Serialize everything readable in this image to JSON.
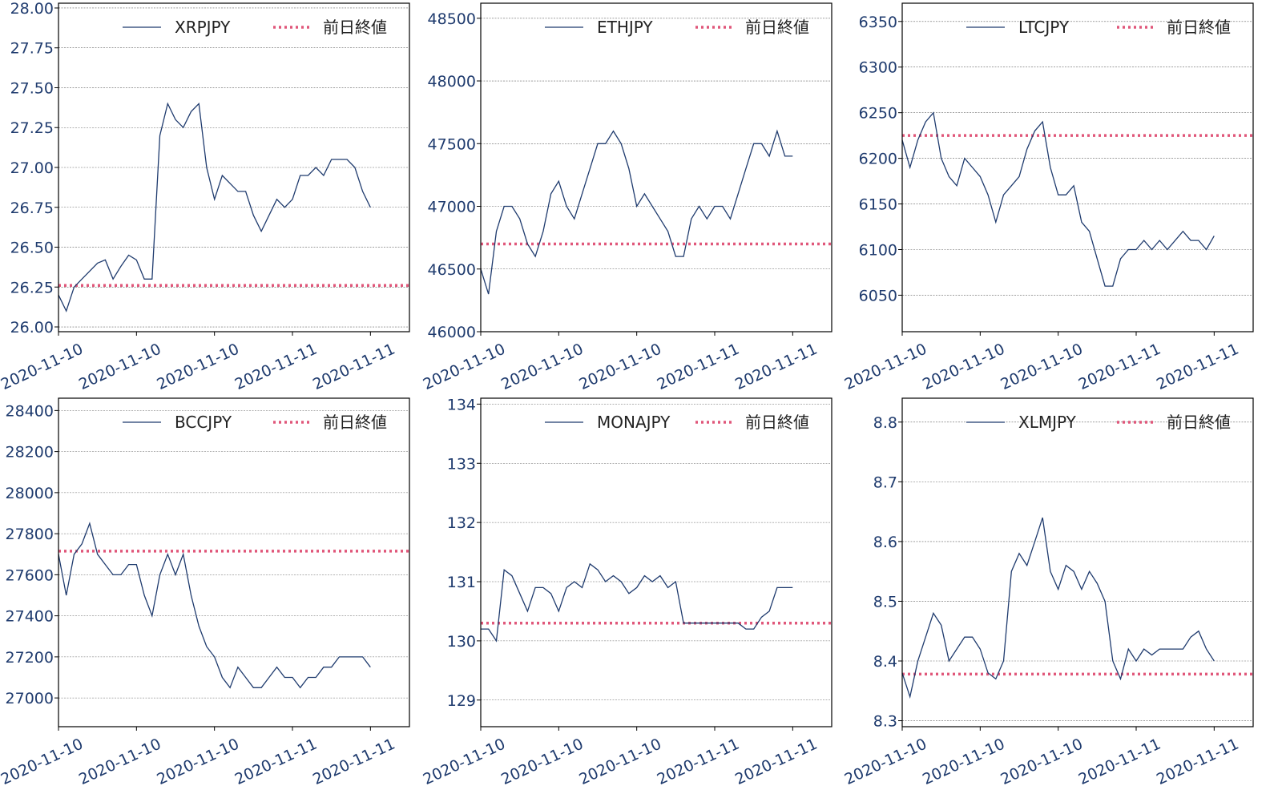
{
  "chart_data": [
    {
      "type": "line",
      "categories": [
        "2020-11-10",
        null,
        null,
        null,
        null,
        null,
        null,
        null,
        null,
        null,
        "2020-11-10",
        null,
        null,
        null,
        null,
        null,
        null,
        null,
        null,
        null,
        "2020-11-10",
        null,
        null,
        null,
        null,
        null,
        null,
        null,
        null,
        null,
        "2020-11-11",
        null,
        null,
        null,
        null,
        null,
        null,
        null,
        null,
        null,
        "2020-11-11"
      ],
      "series": [
        {
          "name": "XRPJPY",
          "color": "#1f3b6e",
          "values": [
            26.2,
            26.1,
            26.25,
            26.3,
            26.35,
            26.4,
            26.42,
            26.3,
            26.38,
            26.45,
            26.42,
            26.3,
            26.3,
            27.2,
            27.4,
            27.3,
            27.25,
            27.35,
            27.4,
            27.0,
            26.8,
            26.95,
            26.9,
            26.85,
            26.85,
            26.7,
            26.6,
            26.7,
            26.8,
            26.75,
            26.8,
            26.95,
            26.95,
            27.0,
            26.95,
            27.05,
            27.05,
            27.05,
            27.0,
            26.85,
            26.75
          ]
        }
      ],
      "reference": {
        "name": "前日終値",
        "value": 26.26,
        "color": "#e0577a"
      },
      "ylim": [
        25.97,
        28.03
      ],
      "yticks": [
        {
          "value": 26,
          "label": "26.00"
        },
        {
          "value": 26.25,
          "label": "26.25"
        },
        {
          "value": 26.5,
          "label": "26.50"
        },
        {
          "value": 26.75,
          "label": "26.75"
        },
        {
          "value": 27,
          "label": "27.00"
        },
        {
          "value": 27.25,
          "label": "27.25"
        },
        {
          "value": 27.5,
          "label": "27.50"
        },
        {
          "value": 27.75,
          "label": "27.75"
        },
        {
          "value": 28,
          "label": "28.00"
        }
      ],
      "grid": true
    },
    {
      "type": "line",
      "categories": [
        "2020-11-10",
        null,
        null,
        null,
        null,
        null,
        null,
        null,
        null,
        null,
        "2020-11-10",
        null,
        null,
        null,
        null,
        null,
        null,
        null,
        null,
        null,
        "2020-11-10",
        null,
        null,
        null,
        null,
        null,
        null,
        null,
        null,
        null,
        "2020-11-11",
        null,
        null,
        null,
        null,
        null,
        null,
        null,
        null,
        null,
        "2020-11-11"
      ],
      "series": [
        {
          "name": "ETHJPY",
          "color": "#1f3b6e",
          "values": [
            46500,
            46300,
            46800,
            47000,
            47000,
            46900,
            46700,
            46600,
            46800,
            47100,
            47200,
            47000,
            46900,
            47100,
            47300,
            47500,
            47500,
            47600,
            47500,
            47300,
            47000,
            47100,
            47000,
            46900,
            46800,
            46600,
            46600,
            46900,
            47000,
            46900,
            47000,
            47000,
            46900,
            47100,
            47300,
            47500,
            47500,
            47400,
            47600,
            47400,
            47400
          ]
        }
      ],
      "reference": {
        "name": "前日終値",
        "value": 46700,
        "color": "#e0577a"
      },
      "ylim": [
        46000,
        48620
      ],
      "yticks": [
        46000,
        46500,
        47000,
        47500,
        48000,
        48500
      ],
      "grid": true
    },
    {
      "type": "line",
      "categories": [
        "2020-11-10",
        null,
        null,
        null,
        null,
        null,
        null,
        null,
        null,
        null,
        "2020-11-10",
        null,
        null,
        null,
        null,
        null,
        null,
        null,
        null,
        null,
        "2020-11-10",
        null,
        null,
        null,
        null,
        null,
        null,
        null,
        null,
        null,
        "2020-11-11",
        null,
        null,
        null,
        null,
        null,
        null,
        null,
        null,
        null,
        "2020-11-11"
      ],
      "series": [
        {
          "name": "LTCJPY",
          "color": "#1f3b6e",
          "values": [
            6220,
            6190,
            6220,
            6240,
            6250,
            6200,
            6180,
            6170,
            6200,
            6190,
            6180,
            6160,
            6130,
            6160,
            6170,
            6180,
            6210,
            6230,
            6240,
            6190,
            6160,
            6160,
            6170,
            6130,
            6120,
            6090,
            6060,
            6060,
            6090,
            6100,
            6100,
            6110,
            6100,
            6110,
            6100,
            6110,
            6120,
            6110,
            6110,
            6100,
            6115
          ]
        }
      ],
      "reference": {
        "name": "前日終値",
        "value": 6225,
        "color": "#e0577a"
      },
      "ylim": [
        6010,
        6370
      ],
      "yticks": [
        6050,
        6100,
        6150,
        6200,
        6250,
        6300,
        6350
      ],
      "grid": true
    },
    {
      "type": "line",
      "categories": [
        "2020-11-10",
        null,
        null,
        null,
        null,
        null,
        null,
        null,
        null,
        null,
        "2020-11-10",
        null,
        null,
        null,
        null,
        null,
        null,
        null,
        null,
        null,
        "2020-11-10",
        null,
        null,
        null,
        null,
        null,
        null,
        null,
        null,
        null,
        "2020-11-11",
        null,
        null,
        null,
        null,
        null,
        null,
        null,
        null,
        null,
        "2020-11-11"
      ],
      "series": [
        {
          "name": "BCCJPY",
          "color": "#1f3b6e",
          "values": [
            27700,
            27500,
            27700,
            27750,
            27850,
            27700,
            27650,
            27600,
            27600,
            27650,
            27650,
            27500,
            27400,
            27600,
            27700,
            27600,
            27700,
            27500,
            27350,
            27250,
            27200,
            27100,
            27050,
            27150,
            27100,
            27050,
            27050,
            27100,
            27150,
            27100,
            27100,
            27050,
            27100,
            27100,
            27150,
            27150,
            27200,
            27200,
            27200,
            27200,
            27150
          ]
        }
      ],
      "reference": {
        "name": "前日終値",
        "value": 27715,
        "color": "#e0577a"
      },
      "ylim": [
        26860,
        28460
      ],
      "yticks": [
        27000,
        27200,
        27400,
        27600,
        27800,
        28000,
        28200,
        28400
      ],
      "grid": true
    },
    {
      "type": "line",
      "categories": [
        "2020-11-10",
        null,
        null,
        null,
        null,
        null,
        null,
        null,
        null,
        null,
        "2020-11-10",
        null,
        null,
        null,
        null,
        null,
        null,
        null,
        null,
        null,
        "2020-11-10",
        null,
        null,
        null,
        null,
        null,
        null,
        null,
        null,
        null,
        "2020-11-11",
        null,
        null,
        null,
        null,
        null,
        null,
        null,
        null,
        null,
        "2020-11-11"
      ],
      "series": [
        {
          "name": "MONAJPY",
          "color": "#1f3b6e",
          "values": [
            130.2,
            130.2,
            130.0,
            131.2,
            131.1,
            130.8,
            130.5,
            130.9,
            130.9,
            130.8,
            130.5,
            130.9,
            131.0,
            130.9,
            131.3,
            131.2,
            131.0,
            131.1,
            131.0,
            130.8,
            130.9,
            131.1,
            131.0,
            131.1,
            130.9,
            131.0,
            130.3,
            130.3,
            130.3,
            130.3,
            130.3,
            130.3,
            130.3,
            130.3,
            130.2,
            130.2,
            130.4,
            130.5,
            130.9,
            130.9,
            130.9
          ]
        }
      ],
      "reference": {
        "name": "前日終値",
        "value": 130.3,
        "color": "#e0577a"
      },
      "ylim": [
        128.55,
        134.1
      ],
      "yticks": [
        129,
        130,
        131,
        132,
        133,
        134
      ],
      "grid": true
    },
    {
      "type": "line",
      "categories": [
        "2020-11-10",
        null,
        null,
        null,
        null,
        null,
        null,
        null,
        null,
        null,
        "2020-11-10",
        null,
        null,
        null,
        null,
        null,
        null,
        null,
        null,
        null,
        "2020-11-10",
        null,
        null,
        null,
        null,
        null,
        null,
        null,
        null,
        null,
        "2020-11-11",
        null,
        null,
        null,
        null,
        null,
        null,
        null,
        null,
        null,
        "2020-11-11"
      ],
      "series": [
        {
          "name": "XLMJPY",
          "color": "#1f3b6e",
          "values": [
            8.38,
            8.34,
            8.4,
            8.44,
            8.48,
            8.46,
            8.4,
            8.42,
            8.44,
            8.44,
            8.42,
            8.38,
            8.37,
            8.4,
            8.55,
            8.58,
            8.56,
            8.6,
            8.64,
            8.55,
            8.52,
            8.56,
            8.55,
            8.52,
            8.55,
            8.53,
            8.5,
            8.4,
            8.37,
            8.42,
            8.4,
            8.42,
            8.41,
            8.42,
            8.42,
            8.42,
            8.42,
            8.44,
            8.45,
            8.42,
            8.4
          ]
        }
      ],
      "reference": {
        "name": "前日終値",
        "value": 8.378,
        "color": "#e0577a"
      },
      "ylim": [
        8.29,
        8.84
      ],
      "yticks": [
        8.3,
        8.4,
        8.5,
        8.6,
        8.7,
        8.8
      ],
      "grid": true
    }
  ]
}
